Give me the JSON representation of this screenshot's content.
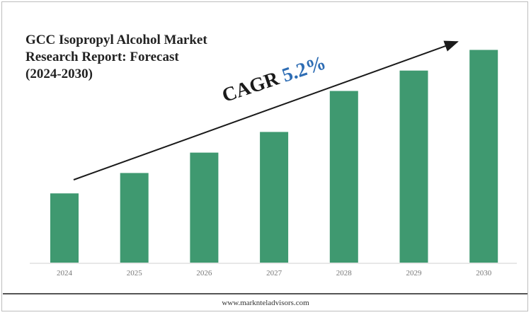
{
  "chart_data": {
    "type": "bar",
    "title_lines": [
      "GCC Isopropyl Alcohol Market",
      "Research Report: Forecast",
      "(2024-2030)"
    ],
    "categories": [
      "2024",
      "2025",
      "2026",
      "2027",
      "2028",
      "2029",
      "2030"
    ],
    "values": [
      2.92,
      3.78,
      4.64,
      5.51,
      7.24,
      8.1,
      8.97
    ],
    "ylim": [
      0,
      10
    ],
    "annotation": {
      "label": "CAGR",
      "value": "5.2%"
    },
    "grid": false,
    "colors": {
      "bar": "#3f9970",
      "arrow": "#1a1a1a",
      "cagr_value": "#2e6db4"
    }
  },
  "footer": {
    "website": "www.marknteladvisors.com"
  }
}
